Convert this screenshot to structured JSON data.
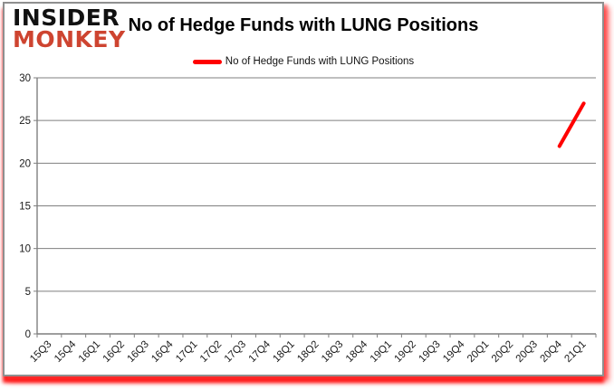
{
  "logo": {
    "line1": "INSIDER",
    "line2": "MONKEY"
  },
  "header": {
    "title": "No of Hedge Funds with LUNG Positions"
  },
  "legend": {
    "label": "No of Hedge Funds with LUNG Positions",
    "color": "#ff0000"
  },
  "colors": {
    "series": "#ff0000",
    "grid": "#7f7f7f",
    "axis": "#7f7f7f",
    "tick_text": "#1a1a1a",
    "frame_border": "#8f8f8f",
    "logo_red": "#ce4430"
  },
  "chart_data": {
    "type": "line",
    "title": "No of Hedge Funds with LUNG Positions",
    "categories": [
      "15Q3",
      "15Q4",
      "16Q1",
      "16Q2",
      "16Q3",
      "16Q4",
      "17Q1",
      "17Q2",
      "17Q3",
      "17Q4",
      "18Q1",
      "18Q2",
      "18Q3",
      "18Q4",
      "19Q1",
      "19Q2",
      "19Q3",
      "19Q4",
      "20Q1",
      "20Q2",
      "20Q3",
      "20Q4",
      "21Q1"
    ],
    "series": [
      {
        "name": "No of Hedge Funds with LUNG Positions",
        "color": "#ff0000",
        "values": [
          null,
          null,
          null,
          null,
          null,
          null,
          null,
          null,
          null,
          null,
          null,
          null,
          null,
          null,
          null,
          null,
          null,
          null,
          null,
          null,
          null,
          22,
          27
        ]
      }
    ],
    "xlabel": "",
    "ylabel": "",
    "ylim": [
      0,
      30
    ],
    "ytick_step": 5,
    "grid": true,
    "legend_position": "top"
  }
}
